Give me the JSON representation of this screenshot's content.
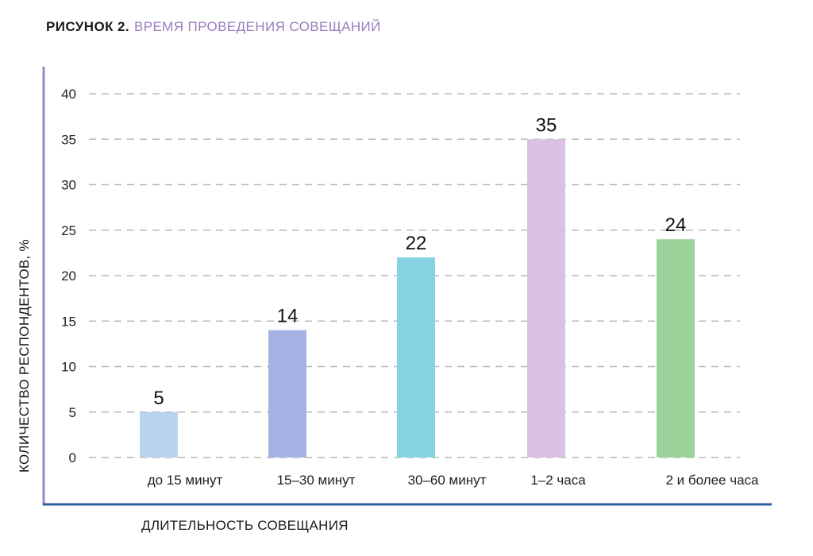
{
  "header": {
    "figure_label": "РИСУНОК 2.",
    "figure_name": "ВРЕМЯ ПРОВЕДЕНИЯ СОВЕЩАНИЙ"
  },
  "chart_data": {
    "type": "bar",
    "title": "ВРЕМЯ ПРОВЕДЕНИЯ СОВЕЩАНИЙ",
    "xlabel": "ДЛИТЕЛЬНОСТЬ СОВЕЩАНИЯ",
    "ylabel": "КОЛИЧЕСТВО РЕСПОНДЕНТОВ, %",
    "categories": [
      "до 15 минут",
      "15–30 минут",
      "30–60 минут",
      "1–2 часа",
      "2 и более часа"
    ],
    "values": [
      5,
      14,
      22,
      35,
      24
    ],
    "value_labels": [
      "5",
      "14",
      "22",
      "35",
      "24"
    ],
    "colors": [
      "#b9d3ee",
      "#a6b1e3",
      "#85d3e0",
      "#dcc2e2",
      "#9dd39a"
    ],
    "yticks": [
      0,
      5,
      10,
      15,
      20,
      25,
      30,
      35,
      40
    ],
    "ylim": [
      0,
      40
    ],
    "grid": true,
    "legend": "none",
    "axis_colors": {
      "y_axis": "#9a88c6",
      "x_axis": "#2f5d9e",
      "grid": "#b8b8b8"
    }
  }
}
